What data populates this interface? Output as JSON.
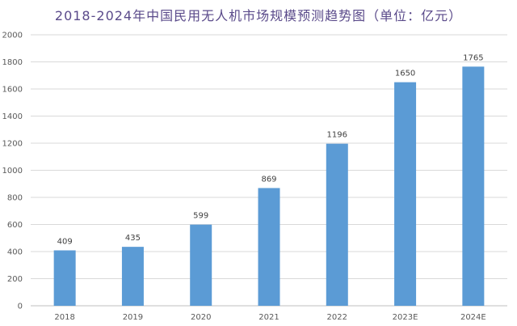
{
  "chart_data": {
    "type": "bar",
    "title": "2018-2024年中国民用无人机市场规模预测趋势图（单位：亿元）",
    "xlabel": "",
    "ylabel": "",
    "categories": [
      "2018",
      "2019",
      "2020",
      "2021",
      "2022",
      "2023E",
      "2024E"
    ],
    "values": [
      409,
      435,
      599,
      869,
      1196,
      1650,
      1765
    ],
    "data_labels": [
      "409",
      "435",
      "599",
      "869",
      "1196",
      "1650",
      "1765"
    ],
    "ylim": [
      0,
      2000
    ],
    "yticks": [
      0,
      200,
      400,
      600,
      800,
      1000,
      1200,
      1400,
      1600,
      1800,
      2000
    ],
    "grid": true,
    "legend": "none",
    "colors": {
      "bar": "#5b9bd5",
      "grid": "#d9d9d9",
      "title": "#5a4a8a"
    }
  }
}
